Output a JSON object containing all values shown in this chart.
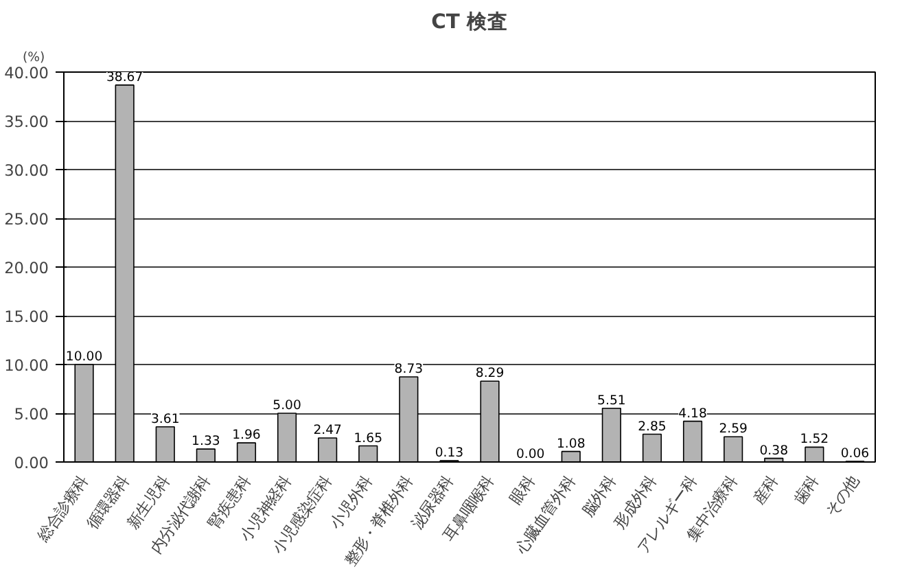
{
  "chart_data": {
    "type": "bar",
    "title": "CT 検査",
    "ylabel": "(%)",
    "categories": [
      "総合診療科",
      "循環器科",
      "新生児科",
      "内分泌代謝科",
      "腎疾患科",
      "小児神経科",
      "小児感染症科",
      "小児外科",
      "整形・脊椎外科",
      "泌尿器科",
      "耳鼻咽喉科",
      "眼科",
      "心臓血管外科",
      "脳外科",
      "形成外科",
      "アレルギー科",
      "集中治療科",
      "産科",
      "歯科",
      "その他"
    ],
    "values": [
      10.0,
      38.67,
      3.61,
      1.33,
      1.96,
      5.0,
      2.47,
      1.65,
      8.73,
      0.13,
      8.29,
      0.0,
      1.08,
      5.51,
      2.85,
      4.18,
      2.59,
      0.38,
      1.52,
      0.06
    ],
    "color": "#b3b3b3",
    "ylim": [
      0,
      40
    ],
    "yticks": [
      {
        "value": 0,
        "label": "0.00"
      },
      {
        "value": 5,
        "label": "5.00"
      },
      {
        "value": 10,
        "label": "10.00"
      },
      {
        "value": 15,
        "label": "15.00"
      },
      {
        "value": 20,
        "label": "20.00"
      },
      {
        "value": 25,
        "label": "25.00"
      },
      {
        "value": 30,
        "label": "30.00"
      },
      {
        "value": 35,
        "label": "35.00"
      },
      {
        "value": 40,
        "label": "40.00"
      }
    ],
    "value_labels": [
      "10.00",
      "38.67",
      "3.61",
      "1.33",
      "1.96",
      "5.00",
      "2.47",
      "1.65",
      "8.73",
      "0.13",
      "8.29",
      "0.00",
      "1.08",
      "5.51",
      "2.85",
      "4.18",
      "2.59",
      "0.38",
      "1.52",
      "0.06"
    ],
    "grid": "y"
  }
}
